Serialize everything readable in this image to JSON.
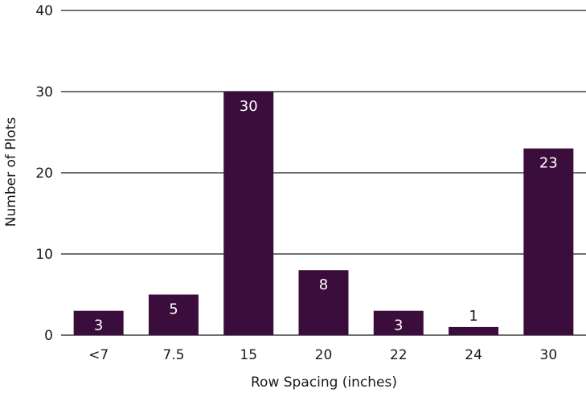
{
  "chart_data": {
    "type": "bar",
    "title": "",
    "xlabel": "Row Spacing (inches)",
    "ylabel": "Number of Plots",
    "categories": [
      "<7",
      "7.5",
      "15",
      "20",
      "22",
      "24",
      "30"
    ],
    "values": [
      3,
      5,
      30,
      8,
      3,
      1,
      23
    ],
    "data_labels": [
      "3",
      "5",
      "30",
      "8",
      "3",
      "1",
      "23"
    ],
    "ylim": [
      0,
      40
    ],
    "yticks": [
      "0",
      "10",
      "20",
      "30",
      "40"
    ],
    "grid": true,
    "legend": "none",
    "colors": {
      "bar": "#3b0d3c",
      "label_inside": "#ffffff",
      "label_outside": "#1a1a1a"
    }
  }
}
